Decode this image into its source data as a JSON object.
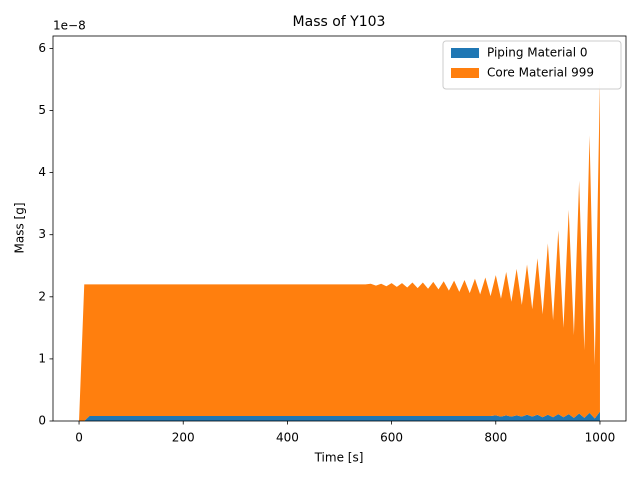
{
  "chart_data": {
    "type": "stackplot",
    "title": "Mass of Y103",
    "x_label": "Time [s]",
    "y_label": "Mass [g]",
    "y_offset_label": "1e−8",
    "x": [
      0,
      10,
      20,
      30,
      40,
      50,
      60,
      70,
      80,
      90,
      100,
      110,
      120,
      130,
      140,
      150,
      160,
      170,
      180,
      190,
      200,
      210,
      220,
      230,
      240,
      250,
      260,
      270,
      280,
      290,
      300,
      310,
      320,
      330,
      340,
      350,
      360,
      370,
      380,
      390,
      400,
      410,
      420,
      430,
      440,
      450,
      460,
      470,
      480,
      490,
      500,
      510,
      520,
      530,
      540,
      550,
      560,
      570,
      580,
      590,
      600,
      610,
      620,
      630,
      640,
      650,
      660,
      670,
      680,
      690,
      700,
      710,
      720,
      730,
      740,
      750,
      760,
      770,
      780,
      790,
      800,
      810,
      820,
      830,
      840,
      850,
      860,
      870,
      880,
      890,
      900,
      910,
      920,
      930,
      940,
      950,
      960,
      970,
      980,
      990,
      1000
    ],
    "series": [
      {
        "name": "Piping Material 0",
        "color": "#1f77b4",
        "values": [
          0,
          0,
          0.08,
          0.08,
          0.08,
          0.08,
          0.08,
          0.08,
          0.08,
          0.08,
          0.08,
          0.08,
          0.08,
          0.08,
          0.08,
          0.08,
          0.08,
          0.08,
          0.08,
          0.08,
          0.08,
          0.08,
          0.08,
          0.08,
          0.08,
          0.08,
          0.08,
          0.08,
          0.08,
          0.08,
          0.08,
          0.08,
          0.08,
          0.08,
          0.08,
          0.08,
          0.08,
          0.08,
          0.08,
          0.08,
          0.08,
          0.08,
          0.08,
          0.08,
          0.08,
          0.08,
          0.08,
          0.08,
          0.08,
          0.08,
          0.08,
          0.08,
          0.08,
          0.08,
          0.08,
          0.08,
          0.08,
          0.08,
          0.08,
          0.08,
          0.08,
          0.08,
          0.08,
          0.08,
          0.08,
          0.08,
          0.08,
          0.08,
          0.08,
          0.08,
          0.08,
          0.08,
          0.08,
          0.08,
          0.08,
          0.08,
          0.08,
          0.08,
          0.08,
          0.08,
          0.09,
          0.07,
          0.09,
          0.07,
          0.09,
          0.07,
          0.1,
          0.07,
          0.1,
          0.06,
          0.1,
          0.06,
          0.11,
          0.06,
          0.11,
          0.05,
          0.12,
          0.05,
          0.13,
          0.04,
          0.15
        ]
      },
      {
        "name": "Core Material 999",
        "color": "#ff7f0e",
        "values": [
          0,
          2.2,
          2.12,
          2.12,
          2.12,
          2.12,
          2.12,
          2.12,
          2.12,
          2.12,
          2.12,
          2.12,
          2.12,
          2.12,
          2.12,
          2.12,
          2.12,
          2.12,
          2.12,
          2.12,
          2.12,
          2.12,
          2.12,
          2.12,
          2.12,
          2.12,
          2.12,
          2.12,
          2.12,
          2.12,
          2.12,
          2.12,
          2.12,
          2.12,
          2.12,
          2.12,
          2.12,
          2.12,
          2.12,
          2.12,
          2.12,
          2.12,
          2.12,
          2.12,
          2.12,
          2.12,
          2.12,
          2.12,
          2.12,
          2.12,
          2.12,
          2.12,
          2.12,
          2.12,
          2.12,
          2.12,
          2.13,
          2.1,
          2.13,
          2.09,
          2.14,
          2.08,
          2.14,
          2.07,
          2.15,
          2.06,
          2.15,
          2.05,
          2.16,
          2.04,
          2.17,
          2.02,
          2.18,
          2.0,
          2.19,
          1.98,
          2.21,
          1.96,
          2.23,
          1.93,
          2.26,
          1.9,
          2.31,
          1.85,
          2.36,
          1.8,
          2.42,
          1.73,
          2.52,
          1.66,
          2.76,
          1.56,
          2.96,
          1.44,
          3.29,
          1.33,
          3.75,
          1.09,
          4.47,
          0.86,
          5.35
        ]
      }
    ],
    "xlim": [
      -50,
      1050
    ],
    "xticks": [
      0,
      200,
      400,
      600,
      800,
      1000
    ],
    "ylim": [
      0,
      6.2
    ],
    "yticks": [
      0,
      1,
      2,
      3,
      4,
      5,
      6
    ],
    "legend": "upper right"
  }
}
